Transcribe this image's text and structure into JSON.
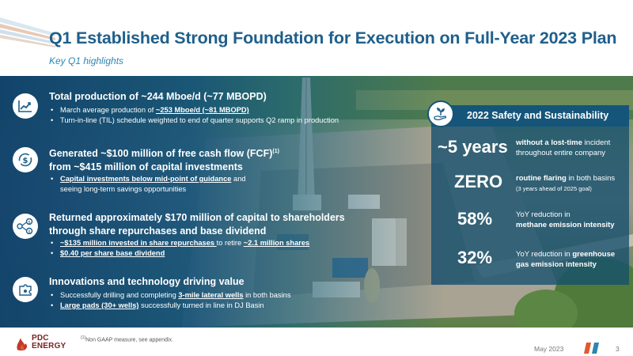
{
  "header": {
    "title": "Q1 Established Strong Foundation for Execution on Full-Year 2023 Plan",
    "subtitle": "Key Q1 highlights"
  },
  "highlights": {
    "production": {
      "icon": "chart-trend-icon",
      "heading": "Total production of ~244 Mboe/d (~77 MBOPD)",
      "b1_pre": "March average production of ",
      "b1_link": "~253 Mboe/d (~81 MBOPD)",
      "b2": "Turn-in-line (TIL) schedule weighted to end of quarter supports Q2 ramp in production"
    },
    "fcf": {
      "icon": "dollar-cycle-icon",
      "heading_l1": "Generated ~$100 million of free cash flow (FCF)",
      "heading_sup": "(1)",
      "heading_l2": "from ~$415 million of capital investments",
      "b1_link": "Capital investments below mid-point of guidance",
      "b1_post": " and",
      "b1_l2": "seeing long-term savings opportunities"
    },
    "capital": {
      "icon": "dollar-network-icon",
      "heading_l1": "Returned approximately $170 million of capital to shareholders",
      "heading_l2": "through share repurchases and base dividend",
      "b1_link": "~$135 million invested in share repurchases ",
      "b1_mid": "to retire ",
      "b1_link2": "~2.1 million shares",
      "b2_link": "$0.40 per share base dividend"
    },
    "innovation": {
      "icon": "puzzle-idea-icon",
      "heading": "Innovations and technology driving value",
      "b1_pre": "Successfully drilling and completing ",
      "b1_link": "3-mile lateral wells",
      "b1_post": " in both basins",
      "b2_link": "Large pads (30+ wells)",
      "b2_post": " successfully turned in line in DJ Basin"
    }
  },
  "panel": {
    "icon": "seedling-hand-icon",
    "title": "2022 Safety and Sustainability",
    "stats": [
      {
        "value": "~5 years",
        "bold": "without a lost-time",
        "text": " incident",
        "line2": "throughout entire company"
      },
      {
        "value": "ZERO",
        "bold": "routine flaring",
        "text": " in both basins",
        "line2": "(3 years ahead of 2025 goal)"
      },
      {
        "value": "58%",
        "text": "YoY reduction in",
        "line2": "methane emission intensity"
      },
      {
        "value": "32%",
        "text": "YoY reduction in ",
        "bold": "greenhouse",
        "line2": "gas emission intensity"
      }
    ]
  },
  "footer": {
    "footnote_sup": "(1)",
    "footnote": "Non GAAP measure, see appendix.",
    "date": "May 2023",
    "page": "3",
    "logo_line1": "PDC",
    "logo_line2": "ENERGY"
  },
  "colors": {
    "title_blue": "#1f5f8b",
    "accent_blue": "#2e86b3",
    "panel_blue": "#15557a",
    "logo_red": "#c0392b",
    "brand_accent": "#e05a2b"
  }
}
